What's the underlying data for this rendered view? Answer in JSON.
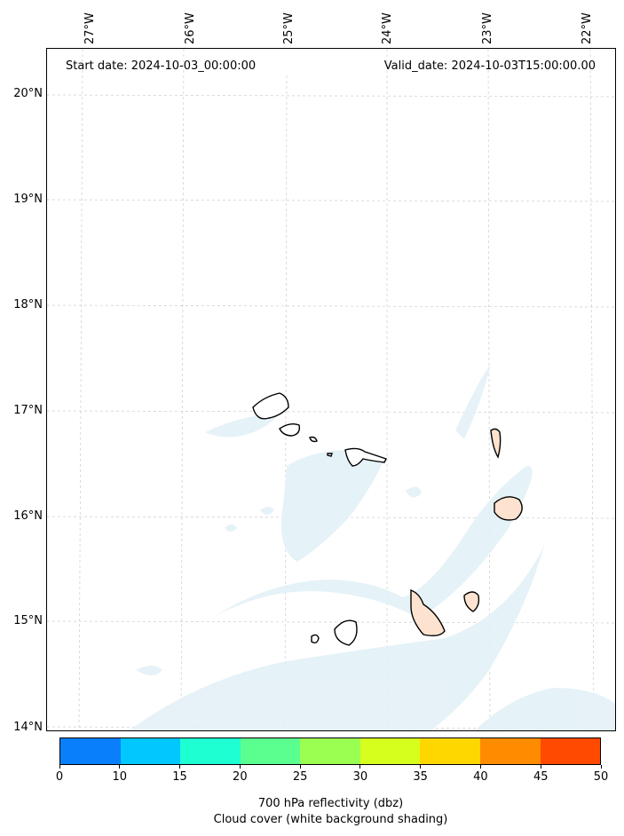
{
  "map": {
    "start_date": "Start date: 2024-10-03_00:00:00",
    "valid_date": "Valid_date: 2024-10-03T15:00:00.00",
    "lon_labels": [
      "27°W",
      "26°W",
      "25°W",
      "24°W",
      "23°W",
      "22°W"
    ],
    "lat_labels": [
      "20°N",
      "19°N",
      "18°N",
      "17°N",
      "16°N",
      "15°N",
      "14°N"
    ]
  },
  "colorbar": {
    "ticks": [
      "0",
      "10",
      "15",
      "20",
      "25",
      "30",
      "35",
      "40",
      "45",
      "50"
    ],
    "colors": [
      "#0a7ffc",
      "#00c8ff",
      "#1effd2",
      "#5bff8f",
      "#9bff52",
      "#d7ff1d",
      "#ffd700",
      "#ff8c00",
      "#ff4a00"
    ],
    "label_line1": "700 hPa reflectivity (dbz)",
    "label_line2": "Cloud cover (white background shading)"
  },
  "style": {
    "cloud_color": "#e3f1f7",
    "land_fill": "#fde3cf"
  }
}
